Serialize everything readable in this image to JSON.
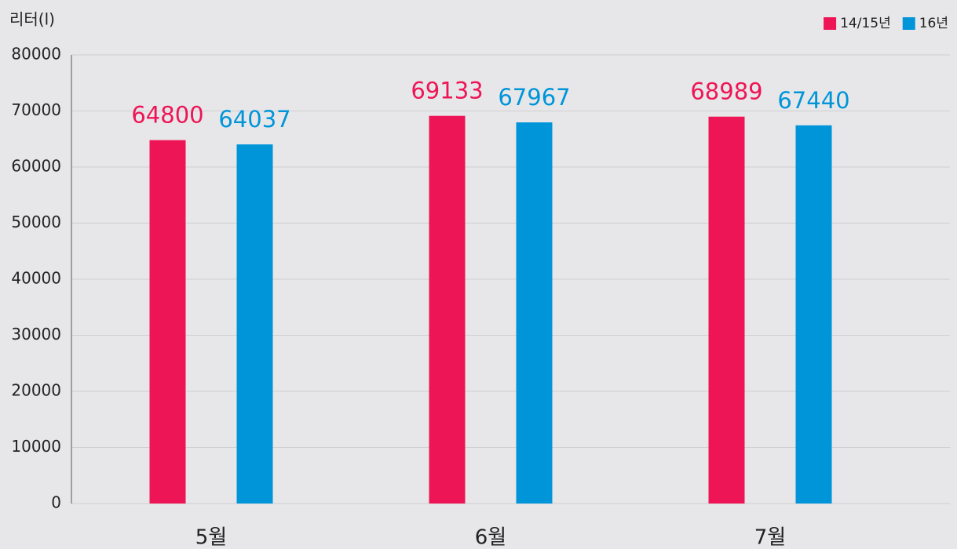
{
  "chart_data": {
    "type": "bar",
    "y_axis_label": "리터(l)",
    "categories": [
      "5월",
      "6월",
      "7월"
    ],
    "series": [
      {
        "name": "14/15년",
        "color": "#ee1556",
        "values": [
          64800,
          69133,
          68989
        ]
      },
      {
        "name": "16년",
        "color": "#0095d9",
        "values": [
          64037,
          67967,
          67440
        ]
      }
    ],
    "ylim": [
      0,
      80000
    ],
    "yticks": [
      0,
      10000,
      20000,
      30000,
      40000,
      50000,
      60000,
      70000,
      80000
    ],
    "grid": true,
    "legend": "top-right"
  }
}
